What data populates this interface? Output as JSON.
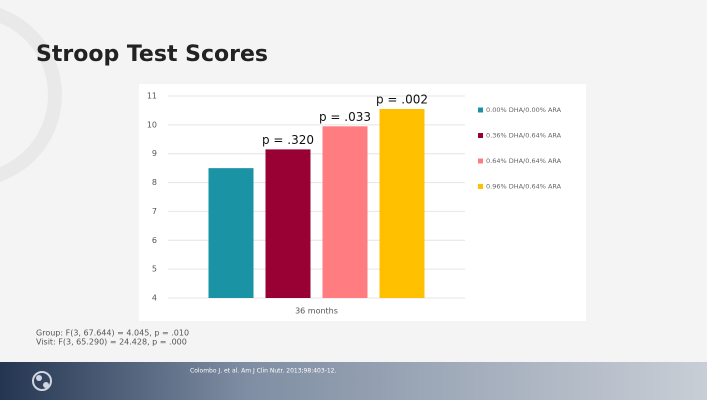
{
  "slide": {
    "title": "Stroop Test Scores",
    "stats": [
      "Group: F(3, 67.644) = 4.045, p = .010",
      "Visit: F(3, 65.290) = 24.428, p = .000"
    ],
    "citation": "Colombo J. et al. Am J Clin Nutr. 2013;98:403-12."
  },
  "chart_data": {
    "type": "bar",
    "categories": [
      "36 months"
    ],
    "series": [
      {
        "name": "0.00% DHA/0.00% ARA",
        "color": "#1a93a4",
        "values": [
          8.5
        ]
      },
      {
        "name": "0.36% DHA/0.64% ARA",
        "color": "#990033",
        "values": [
          9.15
        ],
        "annotation": "p = .320"
      },
      {
        "name": "0.64% DHA/0.64% ARA",
        "color": "#ff7c80",
        "values": [
          9.95
        ],
        "annotation": "p = .033"
      },
      {
        "name": "0.96% DHA/0.64% ARA",
        "color": "#ffc000",
        "values": [
          10.55
        ],
        "annotation": "p = .002"
      }
    ],
    "ylim": [
      4,
      11
    ],
    "yticks": [
      4,
      5,
      6,
      7,
      8,
      9,
      10,
      11
    ],
    "grid": true,
    "legend": "right"
  }
}
